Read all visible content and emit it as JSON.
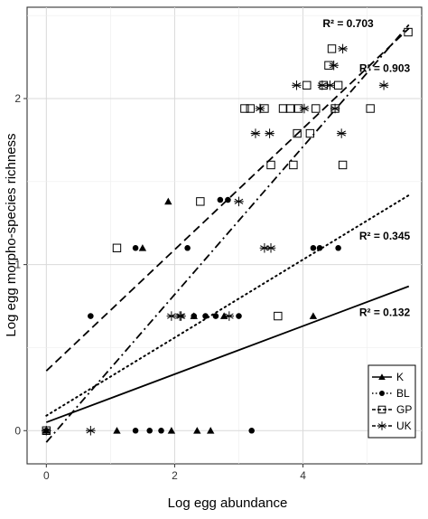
{
  "chart_data": {
    "type": "scatter",
    "title": "",
    "xlabel": "Log egg abundance",
    "ylabel": "Log egg morpho-species richness",
    "xlim": [
      -0.3,
      5.85
    ],
    "ylim": [
      -0.2,
      2.55
    ],
    "xticks": [
      0,
      2,
      4
    ],
    "xtick_labels": [
      "0",
      "2",
      "4"
    ],
    "yticks": [
      0,
      1,
      2
    ],
    "ytick_labels": [
      "0",
      "1",
      "2"
    ],
    "grid": true,
    "legend_position": "bottom-right",
    "series": [
      {
        "name": "K",
        "marker": "triangle",
        "line": "solid",
        "points": [
          [
            0,
            0
          ],
          [
            1.1,
            0
          ],
          [
            1.95,
            0
          ],
          [
            2.35,
            0
          ],
          [
            2.56,
            0
          ],
          [
            1.5,
            1.1
          ],
          [
            1.9,
            1.38
          ],
          [
            2.77,
            0.69
          ],
          [
            4.16,
            0.69
          ],
          [
            2.3,
            0.69
          ]
        ],
        "fit": {
          "intercept": 0.05,
          "slope": 0.145
        },
        "r2_label": "R² = 0.132"
      },
      {
        "name": "BL",
        "marker": "circle",
        "line": "dotted",
        "points": [
          [
            0,
            0
          ],
          [
            0.69,
            0.69
          ],
          [
            1.39,
            0
          ],
          [
            1.61,
            0
          ],
          [
            1.39,
            1.1
          ],
          [
            1.79,
            0
          ],
          [
            2.2,
            1.1
          ],
          [
            2.3,
            0.69
          ],
          [
            2.48,
            0.69
          ],
          [
            2.64,
            0.69
          ],
          [
            2.71,
            1.39
          ],
          [
            2.83,
            1.39
          ],
          [
            3.0,
            0.69
          ],
          [
            3.2,
            0
          ],
          [
            4.16,
            1.1
          ],
          [
            4.26,
            1.1
          ],
          [
            4.55,
            1.1
          ]
        ],
        "fit": {
          "intercept": 0.09,
          "slope": 0.235
        },
        "r2_label": "R² = 0.345"
      },
      {
        "name": "GP",
        "marker": "square",
        "line": "dashed",
        "points": [
          [
            0,
            0
          ],
          [
            1.1,
            1.1
          ],
          [
            2.4,
            1.38
          ],
          [
            3.09,
            1.94
          ],
          [
            3.18,
            1.94
          ],
          [
            3.4,
            1.94
          ],
          [
            3.5,
            1.6
          ],
          [
            3.61,
            0.69
          ],
          [
            3.69,
            1.94
          ],
          [
            3.8,
            1.94
          ],
          [
            3.85,
            1.6
          ],
          [
            3.91,
            1.79
          ],
          [
            3.93,
            1.94
          ],
          [
            4.06,
            2.08
          ],
          [
            4.11,
            1.79
          ],
          [
            4.2,
            1.94
          ],
          [
            4.32,
            2.08
          ],
          [
            4.4,
            2.2
          ],
          [
            4.45,
            2.3
          ],
          [
            4.55,
            2.08
          ],
          [
            4.5,
            1.94
          ],
          [
            4.62,
            1.6
          ],
          [
            5.05,
            1.94
          ],
          [
            5.64,
            2.4
          ]
        ],
        "fit": {
          "intercept": 0.36,
          "slope": 0.365
        },
        "r2_label": "R² = 0.703"
      },
      {
        "name": "UK",
        "marker": "asterisk",
        "line": "dashdot",
        "points": [
          [
            0,
            0
          ],
          [
            0.69,
            0
          ],
          [
            1.95,
            0.69
          ],
          [
            2.08,
            0.69
          ],
          [
            2.1,
            0.69
          ],
          [
            2.85,
            0.69
          ],
          [
            3.0,
            1.38
          ],
          [
            3.26,
            1.79
          ],
          [
            3.33,
            1.94
          ],
          [
            3.4,
            1.1
          ],
          [
            3.5,
            1.1
          ],
          [
            3.48,
            1.79
          ],
          [
            3.9,
            2.08
          ],
          [
            4.02,
            1.94
          ],
          [
            4.3,
            2.08
          ],
          [
            4.42,
            2.08
          ],
          [
            4.48,
            2.2
          ],
          [
            4.5,
            1.94
          ],
          [
            4.6,
            1.79
          ],
          [
            4.62,
            2.3
          ],
          [
            5.26,
            2.08
          ]
        ],
        "fit": {
          "intercept": -0.07,
          "slope": 0.445
        },
        "r2_label": "R² = 0.903"
      }
    ]
  }
}
